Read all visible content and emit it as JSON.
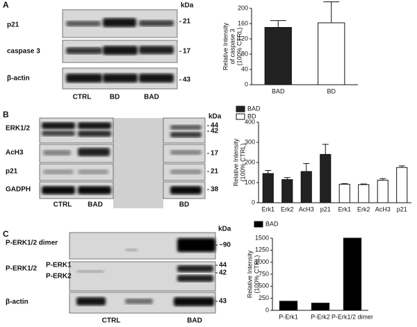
{
  "panels": [
    {
      "letter": "A",
      "rows": [
        "p21",
        "caspase 3",
        "β-actin"
      ],
      "kda": "kDa",
      "markers": [
        "21",
        "17",
        "43"
      ],
      "lanes": [
        "CTRL",
        "BD",
        "BAD"
      ]
    },
    {
      "letter": "B",
      "rows": [
        "ERK1/2",
        "AcH3",
        "p21",
        "GADPH"
      ],
      "kda": "kDa",
      "markers": [
        "44",
        "42",
        "17",
        "21",
        "38"
      ],
      "lanes": [
        "CTRL",
        "BAD",
        "BD"
      ]
    },
    {
      "letter": "C",
      "rows": [
        "P-ERK1/2 dimer",
        "P-ERK1/2",
        "β-actin"
      ],
      "sublabels": [
        "P-ERK1",
        "P-ERK2"
      ],
      "kda": "kDa",
      "markers": [
        "~90",
        "44",
        "42",
        "43"
      ],
      "lanes": [
        "CTRL",
        "BAD"
      ]
    }
  ],
  "chart_data": [
    {
      "type": "bar",
      "y_label": [
        "Relative Intensity",
        "of caspase 3",
        "(100% CTRL)"
      ],
      "categories": [
        "BAD",
        "BD"
      ],
      "values": [
        150,
        162
      ],
      "errors": [
        18,
        55
      ],
      "colors": [
        "#222222",
        "#ffffff"
      ],
      "ylim": [
        0,
        200
      ],
      "yticks": [
        0,
        40,
        80,
        120,
        160,
        200
      ]
    },
    {
      "type": "bar",
      "y_label": [
        "Relative Intensity",
        "(100% CTRL)"
      ],
      "categories": [
        "Erk1",
        "Erk2",
        "AcH3",
        "p21"
      ],
      "series": [
        {
          "name": "BAD",
          "color": "#222222",
          "values": [
            145,
            115,
            155,
            240
          ],
          "errors": [
            15,
            10,
            40,
            50
          ]
        },
        {
          "name": "BD",
          "color": "#ffffff",
          "values": [
            92,
            90,
            112,
            175
          ],
          "errors": [
            3,
            3,
            8,
            8
          ]
        }
      ],
      "ylim": [
        0,
        400
      ],
      "yticks": [
        0,
        100,
        200,
        300,
        400
      ],
      "legend": "top-left"
    },
    {
      "type": "bar",
      "y_label": [
        "Relative Intensity",
        "(100% CTRL)"
      ],
      "categories": [
        "P-Erk1",
        "P-Erk2",
        "P-Erk1/2 dimer"
      ],
      "series": [
        {
          "name": "BAD",
          "color": "#000000",
          "values": [
            190,
            150,
            1500
          ]
        }
      ],
      "ylim": [
        0,
        1500
      ],
      "yticks": [
        0,
        250,
        500,
        750,
        1000,
        1250,
        1500
      ],
      "legend": "top-left"
    }
  ]
}
